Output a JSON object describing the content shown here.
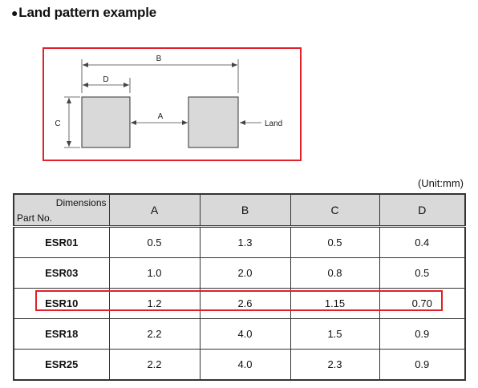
{
  "title": "Land pattern example",
  "bullet": "●",
  "diagram": {
    "labels": {
      "a": "A",
      "b": "B",
      "c": "C",
      "d": "D",
      "land": "Land"
    },
    "colors": {
      "frame": "#e0202a",
      "pad_fill": "#d9d9d9"
    }
  },
  "unit": "(Unit:mm)",
  "table": {
    "corner_dimensions": "Dimensions",
    "corner_part": "Part No.",
    "columns": [
      "A",
      "B",
      "C",
      "D"
    ],
    "rows": [
      {
        "part": "ESR01",
        "values": [
          "0.5",
          "1.3",
          "0.5",
          "0.4"
        ]
      },
      {
        "part": "ESR03",
        "values": [
          "1.0",
          "2.0",
          "0.8",
          "0.5"
        ]
      },
      {
        "part": "ESR10",
        "values": [
          "1.2",
          "2.6",
          "1.15",
          "0.70"
        ]
      },
      {
        "part": "ESR18",
        "values": [
          "2.2",
          "4.0",
          "1.5",
          "0.9"
        ]
      },
      {
        "part": "ESR25",
        "values": [
          "2.2",
          "4.0",
          "2.3",
          "0.9"
        ]
      }
    ],
    "highlighted_part": "ESR10",
    "header_color": "#d9d9d9",
    "highlight_color": "#e0202a"
  }
}
